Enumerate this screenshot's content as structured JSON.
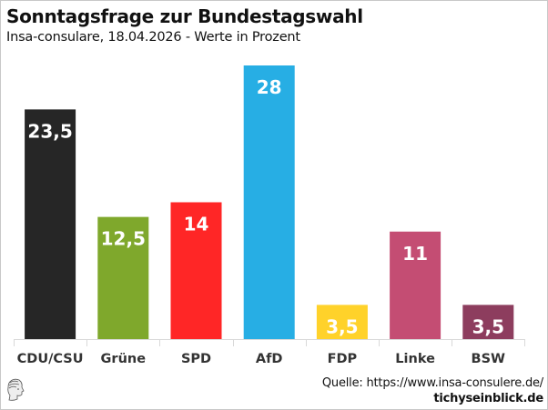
{
  "header": {
    "title": "Sonntagsfrage zur Bundestagswahl",
    "subtitle": "Insa-consulare, 18.04.2026 - Werte in Prozent"
  },
  "footer": {
    "source": "Quelle: https://www.insa-consulere.de/",
    "brand": "tichyseinblick.de",
    "logo_icon": "classical-head-logo-icon"
  },
  "chart_data": {
    "type": "bar",
    "title": "Sonntagsfrage zur Bundestagswahl",
    "subtitle": "Insa-consulare, 18.04.2026 - Werte in Prozent",
    "xlabel": "",
    "ylabel": "",
    "ylim": [
      0,
      28
    ],
    "grid": false,
    "legend": "none",
    "categories": [
      "CDU/CSU",
      "Grüne",
      "SPD",
      "AfD",
      "FDP",
      "Linke",
      "BSW"
    ],
    "values": [
      23.5,
      12.5,
      14,
      28,
      3.5,
      11,
      3.5
    ],
    "value_labels": [
      "23,5",
      "12,5",
      "14",
      "28",
      "3,5",
      "11",
      "3,5"
    ],
    "colors": [
      "#262626",
      "#7fa82c",
      "#ff2626",
      "#27aee4",
      "#ffd22a",
      "#c44d73",
      "#8d3d5e"
    ]
  }
}
